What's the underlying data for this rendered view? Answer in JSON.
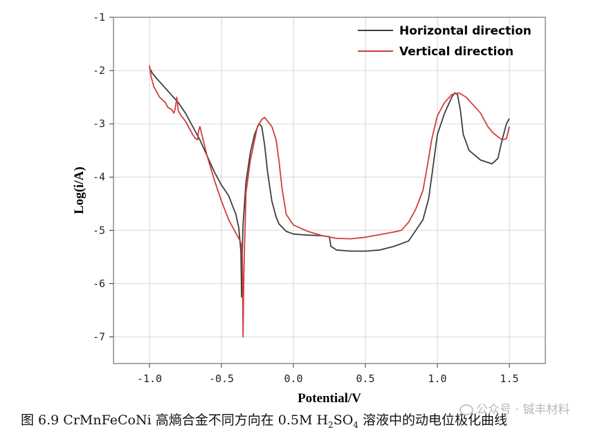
{
  "chart_data": {
    "type": "line",
    "xlabel": "Potential/V",
    "ylabel": "Log(i/A)",
    "xlim": [
      -1.25,
      1.75
    ],
    "ylim": [
      -7.5,
      -1
    ],
    "xticks": [
      -1.0,
      -0.5,
      0.0,
      0.5,
      1.0,
      1.5
    ],
    "xtick_labels": [
      "-1.0",
      "-0.5",
      "0.0",
      "0.5",
      "1.0",
      "1.5"
    ],
    "yticks": [
      -1,
      -2,
      -3,
      -4,
      -5,
      -6,
      -7
    ],
    "ytick_labels": [
      "-1",
      "-2",
      "-3",
      "-4",
      "-5",
      "-6",
      "-7"
    ],
    "grid": true,
    "legend_position": "top-right",
    "series": [
      {
        "name": "Horizontal direction",
        "color": "#3d3d3d",
        "x": [
          -1.0,
          -0.98,
          -0.95,
          -0.9,
          -0.85,
          -0.8,
          -0.75,
          -0.7,
          -0.65,
          -0.6,
          -0.55,
          -0.5,
          -0.45,
          -0.4,
          -0.38,
          -0.365,
          -0.36,
          -0.358,
          -0.355,
          -0.35,
          -0.33,
          -0.3,
          -0.27,
          -0.24,
          -0.22,
          -0.2,
          -0.18,
          -0.15,
          -0.12,
          -0.1,
          -0.05,
          0.0,
          0.05,
          0.1,
          0.2,
          0.25,
          0.26,
          0.3,
          0.4,
          0.5,
          0.6,
          0.7,
          0.8,
          0.9,
          0.94,
          0.97,
          1.0,
          1.05,
          1.1,
          1.12,
          1.14,
          1.16,
          1.18,
          1.22,
          1.3,
          1.38,
          1.42,
          1.45,
          1.48,
          1.5
        ],
        "y": [
          -1.95,
          -2.05,
          -2.15,
          -2.3,
          -2.45,
          -2.6,
          -2.8,
          -3.05,
          -3.3,
          -3.6,
          -3.9,
          -4.15,
          -4.35,
          -4.7,
          -4.95,
          -5.4,
          -6.25,
          -5.9,
          -5.3,
          -4.9,
          -4.1,
          -3.55,
          -3.2,
          -3.0,
          -3.05,
          -3.4,
          -3.9,
          -4.45,
          -4.75,
          -4.88,
          -5.02,
          -5.07,
          -5.08,
          -5.09,
          -5.1,
          -5.12,
          -5.3,
          -5.37,
          -5.39,
          -5.39,
          -5.37,
          -5.3,
          -5.2,
          -4.8,
          -4.4,
          -3.8,
          -3.2,
          -2.8,
          -2.5,
          -2.42,
          -2.45,
          -2.75,
          -3.2,
          -3.5,
          -3.68,
          -3.75,
          -3.65,
          -3.3,
          -3.0,
          -2.9
        ]
      },
      {
        "name": "Vertical direction",
        "color": "#d23c3c",
        "x": [
          -1.0,
          -0.99,
          -0.98,
          -0.97,
          -0.95,
          -0.93,
          -0.91,
          -0.89,
          -0.87,
          -0.85,
          -0.83,
          -0.82,
          -0.81,
          -0.8,
          -0.78,
          -0.75,
          -0.72,
          -0.7,
          -0.68,
          -0.665,
          -0.66,
          -0.65,
          -0.6,
          -0.55,
          -0.5,
          -0.45,
          -0.4,
          -0.37,
          -0.36,
          -0.355,
          -0.35,
          -0.345,
          -0.34,
          -0.335,
          -0.33,
          -0.3,
          -0.25,
          -0.22,
          -0.2,
          -0.18,
          -0.15,
          -0.12,
          -0.1,
          -0.08,
          -0.05,
          0.0,
          0.1,
          0.2,
          0.3,
          0.4,
          0.5,
          0.6,
          0.7,
          0.75,
          0.8,
          0.85,
          0.9,
          0.93,
          0.96,
          1.0,
          1.05,
          1.1,
          1.15,
          1.2,
          1.25,
          1.3,
          1.35,
          1.38,
          1.4,
          1.45,
          1.48,
          1.5
        ],
        "y": [
          -1.9,
          -2.1,
          -2.2,
          -2.3,
          -2.4,
          -2.5,
          -2.55,
          -2.6,
          -2.7,
          -2.72,
          -2.8,
          -2.7,
          -2.5,
          -2.75,
          -2.85,
          -2.95,
          -3.1,
          -3.2,
          -3.28,
          -3.3,
          -3.15,
          -3.05,
          -3.6,
          -4.05,
          -4.45,
          -4.8,
          -5.05,
          -5.2,
          -5.3,
          -5.5,
          -7.0,
          -5.95,
          -5.3,
          -4.9,
          -4.3,
          -3.7,
          -3.05,
          -2.92,
          -2.88,
          -2.95,
          -3.05,
          -3.3,
          -3.7,
          -4.2,
          -4.7,
          -4.9,
          -5.02,
          -5.1,
          -5.15,
          -5.16,
          -5.13,
          -5.08,
          -5.03,
          -5.0,
          -4.85,
          -4.6,
          -4.25,
          -3.8,
          -3.3,
          -2.85,
          -2.6,
          -2.45,
          -2.42,
          -2.5,
          -2.65,
          -2.8,
          -3.05,
          -3.15,
          -3.2,
          -3.3,
          -3.28,
          -3.05
        ]
      }
    ]
  },
  "caption": {
    "prefix": "图 6.9 CrMnFeCoNi 高熵合金不同方向在 0.5M H",
    "sub1": "2",
    "mid": "SO",
    "sub2": "4",
    "suffix": " 溶液中的动电位极化曲线"
  },
  "watermark": "公众号 · 铖丰材料"
}
